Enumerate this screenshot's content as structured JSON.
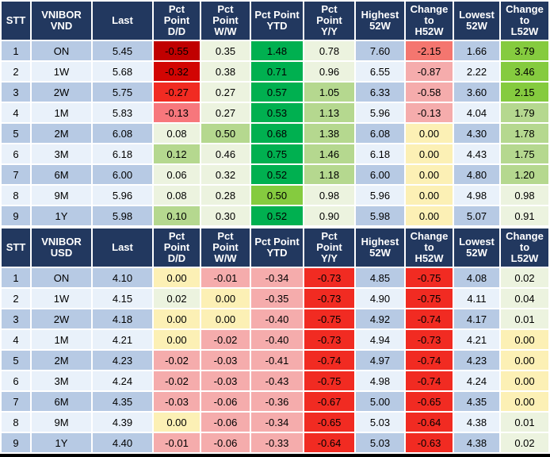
{
  "colors": {
    "header_bg": "#22385F",
    "header_text": "#FFFFFF",
    "row_odd": "#B7CAE4",
    "row_even": "#E9F1FA",
    "gridline": "#FFFFFF",
    "bottom_border": "#000000",
    "scale": {
      "g": "#00B050",
      "yg": "#85CB3F",
      "lg": "#B5D88F",
      "pg": "#ECF3DF",
      "y": "#FCF0B5",
      "p": "#F5ACAC",
      "s": "#F4766F",
      "lr": "#F7777C",
      "r": "#F12B22",
      "dr": "#C00000",
      "dr2": "#D20503"
    }
  },
  "tables": [
    {
      "id": "vnibor-vnd",
      "headers": [
        {
          "key": "stt",
          "lines": [
            "STT"
          ]
        },
        {
          "key": "instrument",
          "lines": [
            "VNIBOR",
            "VND"
          ]
        },
        {
          "key": "last",
          "lines": [
            "Last"
          ]
        },
        {
          "key": "dd",
          "lines": [
            "Pct",
            "Point",
            "D/D"
          ]
        },
        {
          "key": "ww",
          "lines": [
            "Pct",
            "Point",
            "W/W"
          ]
        },
        {
          "key": "ytd",
          "lines": [
            "Pct Point",
            "YTD"
          ]
        },
        {
          "key": "yy",
          "lines": [
            "Pct",
            "Point",
            "Y/Y"
          ]
        },
        {
          "key": "h52",
          "lines": [
            "Highest",
            "52W"
          ]
        },
        {
          "key": "chg_h",
          "lines": [
            "Change",
            "to",
            "H52W"
          ]
        },
        {
          "key": "l52",
          "lines": [
            "Lowest",
            "52W"
          ]
        },
        {
          "key": "chg_l",
          "lines": [
            "Change",
            "to",
            "L52W"
          ]
        }
      ],
      "rows": [
        {
          "stt": "1",
          "tenor": "ON",
          "last": "5.45",
          "dd": {
            "v": "-0.55",
            "c": "dr"
          },
          "ww": {
            "v": "0.35",
            "c": "pg"
          },
          "ytd": {
            "v": "1.48",
            "c": "g"
          },
          "yy": {
            "v": "0.78",
            "c": "pg"
          },
          "h52": {
            "v": "7.60",
            "c": ""
          },
          "chg_h": {
            "v": "-2.15",
            "c": "s"
          },
          "l52": {
            "v": "1.66",
            "c": ""
          },
          "chg_l": {
            "v": "3.79",
            "c": "yg"
          }
        },
        {
          "stt": "2",
          "tenor": "1W",
          "last": "5.68",
          "dd": {
            "v": "-0.32",
            "c": "dr2"
          },
          "ww": {
            "v": "0.38",
            "c": "pg"
          },
          "ytd": {
            "v": "0.71",
            "c": "g"
          },
          "yy": {
            "v": "0.96",
            "c": "pg"
          },
          "h52": {
            "v": "6.55",
            "c": ""
          },
          "chg_h": {
            "v": "-0.87",
            "c": "p"
          },
          "l52": {
            "v": "2.22",
            "c": ""
          },
          "chg_l": {
            "v": "3.46",
            "c": "yg"
          }
        },
        {
          "stt": "3",
          "tenor": "2W",
          "last": "5.75",
          "dd": {
            "v": "-0.27",
            "c": "r"
          },
          "ww": {
            "v": "0.27",
            "c": "pg"
          },
          "ytd": {
            "v": "0.57",
            "c": "g"
          },
          "yy": {
            "v": "1.05",
            "c": "lg"
          },
          "h52": {
            "v": "6.33",
            "c": ""
          },
          "chg_h": {
            "v": "-0.58",
            "c": "p"
          },
          "l52": {
            "v": "3.60",
            "c": ""
          },
          "chg_l": {
            "v": "2.15",
            "c": "yg"
          }
        },
        {
          "stt": "4",
          "tenor": "1M",
          "last": "5.83",
          "dd": {
            "v": "-0.13",
            "c": "lr"
          },
          "ww": {
            "v": "0.27",
            "c": "pg"
          },
          "ytd": {
            "v": "0.53",
            "c": "g"
          },
          "yy": {
            "v": "1.13",
            "c": "lg"
          },
          "h52": {
            "v": "5.96",
            "c": ""
          },
          "chg_h": {
            "v": "-0.13",
            "c": "p"
          },
          "l52": {
            "v": "4.04",
            "c": ""
          },
          "chg_l": {
            "v": "1.79",
            "c": "lg"
          }
        },
        {
          "stt": "5",
          "tenor": "2M",
          "last": "6.08",
          "dd": {
            "v": "0.08",
            "c": "pg"
          },
          "ww": {
            "v": "0.50",
            "c": "lg"
          },
          "ytd": {
            "v": "0.68",
            "c": "g"
          },
          "yy": {
            "v": "1.38",
            "c": "lg"
          },
          "h52": {
            "v": "6.08",
            "c": ""
          },
          "chg_h": {
            "v": "0.00",
            "c": "y"
          },
          "l52": {
            "v": "4.30",
            "c": ""
          },
          "chg_l": {
            "v": "1.78",
            "c": "lg"
          }
        },
        {
          "stt": "6",
          "tenor": "3M",
          "last": "6.18",
          "dd": {
            "v": "0.12",
            "c": "lg"
          },
          "ww": {
            "v": "0.46",
            "c": "pg"
          },
          "ytd": {
            "v": "0.75",
            "c": "g"
          },
          "yy": {
            "v": "1.46",
            "c": "lg"
          },
          "h52": {
            "v": "6.18",
            "c": ""
          },
          "chg_h": {
            "v": "0.00",
            "c": "y"
          },
          "l52": {
            "v": "4.43",
            "c": ""
          },
          "chg_l": {
            "v": "1.75",
            "c": "lg"
          }
        },
        {
          "stt": "7",
          "tenor": "6M",
          "last": "6.00",
          "dd": {
            "v": "0.06",
            "c": "pg"
          },
          "ww": {
            "v": "0.32",
            "c": "pg"
          },
          "ytd": {
            "v": "0.52",
            "c": "g"
          },
          "yy": {
            "v": "1.18",
            "c": "lg"
          },
          "h52": {
            "v": "6.00",
            "c": ""
          },
          "chg_h": {
            "v": "0.00",
            "c": "y"
          },
          "l52": {
            "v": "4.80",
            "c": ""
          },
          "chg_l": {
            "v": "1.20",
            "c": "lg"
          }
        },
        {
          "stt": "8",
          "tenor": "9M",
          "last": "5.96",
          "dd": {
            "v": "0.08",
            "c": "pg"
          },
          "ww": {
            "v": "0.28",
            "c": "pg"
          },
          "ytd": {
            "v": "0.50",
            "c": "yg"
          },
          "yy": {
            "v": "0.98",
            "c": "pg"
          },
          "h52": {
            "v": "5.96",
            "c": ""
          },
          "chg_h": {
            "v": "0.00",
            "c": "y"
          },
          "l52": {
            "v": "4.98",
            "c": ""
          },
          "chg_l": {
            "v": "0.98",
            "c": "pg"
          }
        },
        {
          "stt": "9",
          "tenor": "1Y",
          "last": "5.98",
          "dd": {
            "v": "0.10",
            "c": "lg"
          },
          "ww": {
            "v": "0.30",
            "c": "pg"
          },
          "ytd": {
            "v": "0.52",
            "c": "g"
          },
          "yy": {
            "v": "0.90",
            "c": "pg"
          },
          "h52": {
            "v": "5.98",
            "c": ""
          },
          "chg_h": {
            "v": "0.00",
            "c": "y"
          },
          "l52": {
            "v": "5.07",
            "c": ""
          },
          "chg_l": {
            "v": "0.91",
            "c": "pg"
          }
        }
      ]
    },
    {
      "id": "vnibor-usd",
      "headers": [
        {
          "key": "stt",
          "lines": [
            "STT"
          ]
        },
        {
          "key": "instrument",
          "lines": [
            "VNIBOR",
            "USD"
          ]
        },
        {
          "key": "last",
          "lines": [
            "Last"
          ]
        },
        {
          "key": "dd",
          "lines": [
            "Pct",
            "Point",
            "D/D"
          ]
        },
        {
          "key": "ww",
          "lines": [
            "Pct",
            "Point",
            "W/W"
          ]
        },
        {
          "key": "ytd",
          "lines": [
            "Pct Point",
            "YTD"
          ]
        },
        {
          "key": "yy",
          "lines": [
            "Pct",
            "Point",
            "Y/Y"
          ]
        },
        {
          "key": "h52",
          "lines": [
            "Highest",
            "52W"
          ]
        },
        {
          "key": "chg_h",
          "lines": [
            "Change",
            "to",
            "H52W"
          ]
        },
        {
          "key": "l52",
          "lines": [
            "Lowest",
            "52W"
          ]
        },
        {
          "key": "chg_l",
          "lines": [
            "Change",
            "to",
            "L52W"
          ]
        }
      ],
      "rows": [
        {
          "stt": "1",
          "tenor": "ON",
          "last": "4.10",
          "dd": {
            "v": "0.00",
            "c": "y"
          },
          "ww": {
            "v": "-0.01",
            "c": "p"
          },
          "ytd": {
            "v": "-0.34",
            "c": "p"
          },
          "yy": {
            "v": "-0.73",
            "c": "r"
          },
          "h52": {
            "v": "4.85",
            "c": ""
          },
          "chg_h": {
            "v": "-0.75",
            "c": "r"
          },
          "l52": {
            "v": "4.08",
            "c": ""
          },
          "chg_l": {
            "v": "0.02",
            "c": "pg"
          }
        },
        {
          "stt": "2",
          "tenor": "1W",
          "last": "4.15",
          "dd": {
            "v": "0.02",
            "c": "pg"
          },
          "ww": {
            "v": "0.00",
            "c": "y"
          },
          "ytd": {
            "v": "-0.35",
            "c": "p"
          },
          "yy": {
            "v": "-0.73",
            "c": "r"
          },
          "h52": {
            "v": "4.90",
            "c": ""
          },
          "chg_h": {
            "v": "-0.75",
            "c": "r"
          },
          "l52": {
            "v": "4.11",
            "c": ""
          },
          "chg_l": {
            "v": "0.04",
            "c": "pg"
          }
        },
        {
          "stt": "3",
          "tenor": "2W",
          "last": "4.18",
          "dd": {
            "v": "0.00",
            "c": "y"
          },
          "ww": {
            "v": "0.00",
            "c": "y"
          },
          "ytd": {
            "v": "-0.40",
            "c": "p"
          },
          "yy": {
            "v": "-0.75",
            "c": "r"
          },
          "h52": {
            "v": "4.92",
            "c": ""
          },
          "chg_h": {
            "v": "-0.74",
            "c": "r"
          },
          "l52": {
            "v": "4.17",
            "c": ""
          },
          "chg_l": {
            "v": "0.01",
            "c": "pg"
          }
        },
        {
          "stt": "4",
          "tenor": "1M",
          "last": "4.21",
          "dd": {
            "v": "0.00",
            "c": "y"
          },
          "ww": {
            "v": "-0.02",
            "c": "p"
          },
          "ytd": {
            "v": "-0.40",
            "c": "p"
          },
          "yy": {
            "v": "-0.73",
            "c": "r"
          },
          "h52": {
            "v": "4.94",
            "c": ""
          },
          "chg_h": {
            "v": "-0.73",
            "c": "r"
          },
          "l52": {
            "v": "4.21",
            "c": ""
          },
          "chg_l": {
            "v": "0.00",
            "c": "y"
          }
        },
        {
          "stt": "5",
          "tenor": "2M",
          "last": "4.23",
          "dd": {
            "v": "-0.02",
            "c": "p"
          },
          "ww": {
            "v": "-0.03",
            "c": "p"
          },
          "ytd": {
            "v": "-0.41",
            "c": "p"
          },
          "yy": {
            "v": "-0.74",
            "c": "r"
          },
          "h52": {
            "v": "4.97",
            "c": ""
          },
          "chg_h": {
            "v": "-0.74",
            "c": "r"
          },
          "l52": {
            "v": "4.23",
            "c": ""
          },
          "chg_l": {
            "v": "0.00",
            "c": "y"
          }
        },
        {
          "stt": "6",
          "tenor": "3M",
          "last": "4.24",
          "dd": {
            "v": "-0.02",
            "c": "p"
          },
          "ww": {
            "v": "-0.03",
            "c": "p"
          },
          "ytd": {
            "v": "-0.43",
            "c": "p"
          },
          "yy": {
            "v": "-0.75",
            "c": "r"
          },
          "h52": {
            "v": "4.98",
            "c": ""
          },
          "chg_h": {
            "v": "-0.74",
            "c": "r"
          },
          "l52": {
            "v": "4.24",
            "c": ""
          },
          "chg_l": {
            "v": "0.00",
            "c": "y"
          }
        },
        {
          "stt": "7",
          "tenor": "6M",
          "last": "4.35",
          "dd": {
            "v": "-0.03",
            "c": "p"
          },
          "ww": {
            "v": "-0.06",
            "c": "p"
          },
          "ytd": {
            "v": "-0.36",
            "c": "p"
          },
          "yy": {
            "v": "-0.67",
            "c": "r"
          },
          "h52": {
            "v": "5.00",
            "c": ""
          },
          "chg_h": {
            "v": "-0.65",
            "c": "r"
          },
          "l52": {
            "v": "4.35",
            "c": ""
          },
          "chg_l": {
            "v": "0.00",
            "c": "y"
          }
        },
        {
          "stt": "8",
          "tenor": "9M",
          "last": "4.39",
          "dd": {
            "v": "0.00",
            "c": "y"
          },
          "ww": {
            "v": "-0.06",
            "c": "p"
          },
          "ytd": {
            "v": "-0.34",
            "c": "p"
          },
          "yy": {
            "v": "-0.65",
            "c": "r"
          },
          "h52": {
            "v": "5.03",
            "c": ""
          },
          "chg_h": {
            "v": "-0.64",
            "c": "r"
          },
          "l52": {
            "v": "4.38",
            "c": ""
          },
          "chg_l": {
            "v": "0.01",
            "c": "pg"
          }
        },
        {
          "stt": "9",
          "tenor": "1Y",
          "last": "4.40",
          "dd": {
            "v": "-0.01",
            "c": "p"
          },
          "ww": {
            "v": "-0.06",
            "c": "p"
          },
          "ytd": {
            "v": "-0.33",
            "c": "p"
          },
          "yy": {
            "v": "-0.64",
            "c": "r"
          },
          "h52": {
            "v": "5.03",
            "c": ""
          },
          "chg_h": {
            "v": "-0.63",
            "c": "r"
          },
          "l52": {
            "v": "4.38",
            "c": ""
          },
          "chg_l": {
            "v": "0.02",
            "c": "pg"
          }
        }
      ]
    }
  ]
}
